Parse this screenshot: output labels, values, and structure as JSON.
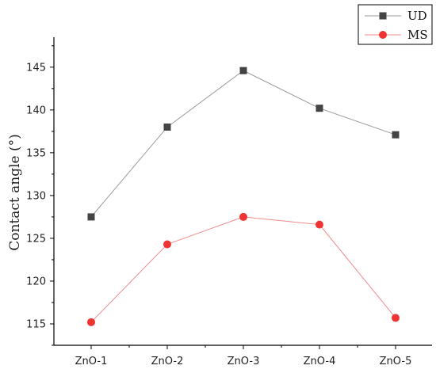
{
  "chart_data": {
    "type": "line",
    "categories": [
      "ZnO-1",
      "ZnO-2",
      "ZnO-3",
      "ZnO-4",
      "ZnO-5"
    ],
    "series": [
      {
        "name": "UD",
        "values": [
          127.5,
          138.0,
          144.6,
          140.2,
          137.1
        ],
        "color": "#444444",
        "line_color": "#9a9a9a",
        "marker": "square"
      },
      {
        "name": "MS",
        "values": [
          115.2,
          124.3,
          127.5,
          126.6,
          115.7
        ],
        "color": "#ee3333",
        "line_color": "#f08c8c",
        "marker": "circle"
      }
    ],
    "title": "",
    "xlabel": "",
    "ylabel": "Contact angle (°)",
    "ylim": [
      112.5,
      148.5
    ],
    "yticks": [
      115,
      120,
      125,
      130,
      135,
      140,
      145
    ],
    "grid": false,
    "legend": "top-right"
  }
}
